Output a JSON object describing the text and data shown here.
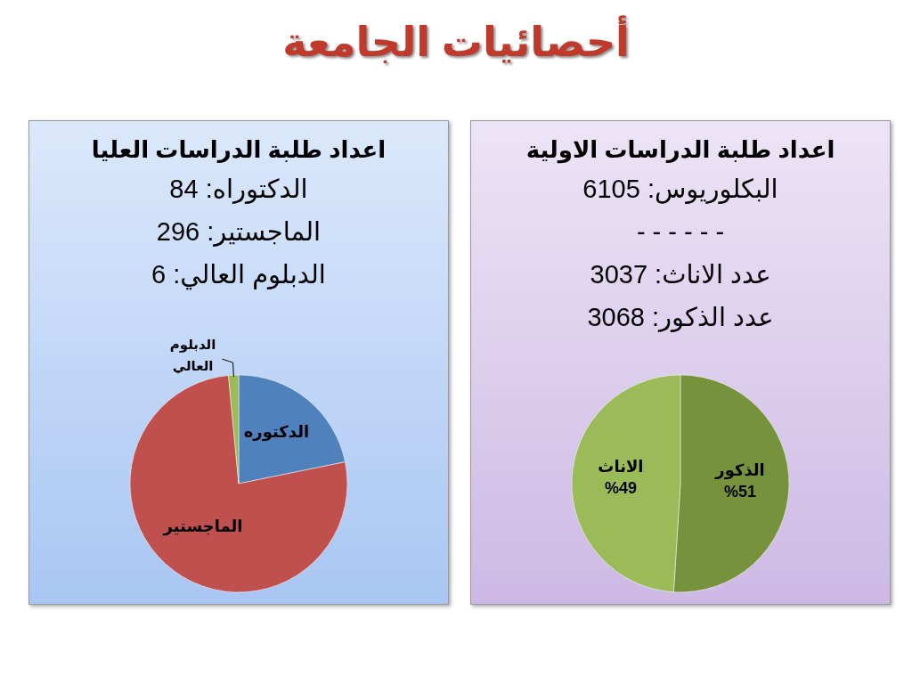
{
  "chart_data": [
    {
      "type": "other",
      "title": "أحصائيات الجامعة"
    },
    {
      "type": "pie",
      "title": "اعداد طلبة الدراسات الاولية",
      "annotations": [
        "البكلوريوس: 6105",
        "- - - - - -",
        "عدد الاناث: 3037",
        "عدد الذكور: 3068"
      ],
      "categories": [
        "الذكور",
        "الاناث"
      ],
      "values": [
        51,
        49
      ],
      "colors": [
        "#76923c",
        "#9bbb59"
      ],
      "value_labels": [
        "%51",
        "%49"
      ]
    },
    {
      "type": "pie",
      "title": "اعداد طلبة الدراسات العليا",
      "annotations": [
        "الدكتوراه: 84",
        "الماجستير: 296",
        "الدبلوم العالي: 6"
      ],
      "categories": [
        "الدكتوره",
        "الماجستير",
        "الدبلوم العالي"
      ],
      "values": [
        21.8,
        76.7,
        1.5
      ],
      "colors": [
        "#4f81bd",
        "#c0504d",
        "#9bbb59"
      ]
    }
  ]
}
